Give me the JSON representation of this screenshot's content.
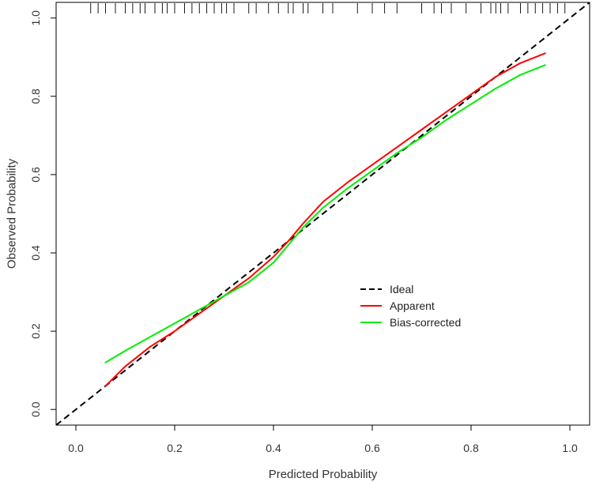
{
  "chart_data": {
    "type": "line",
    "title": "",
    "xlabel": "Predicted Probability",
    "ylabel": "Observed Probability",
    "xlim": [
      -0.04,
      1.04
    ],
    "ylim": [
      -0.04,
      1.04
    ],
    "xticks": [
      0.0,
      0.2,
      0.4,
      0.6,
      0.8,
      1.0
    ],
    "yticks": [
      0.0,
      0.2,
      0.4,
      0.6,
      0.8,
      1.0
    ],
    "xtick_labels": [
      "0.0",
      "0.2",
      "0.4",
      "0.6",
      "0.8",
      "1.0"
    ],
    "ytick_labels": [
      "0.0",
      "0.2",
      "0.4",
      "0.6",
      "0.8",
      "1.0"
    ],
    "grid": false,
    "legend_position": "center-right",
    "series": [
      {
        "name": "Ideal",
        "color": "#000000",
        "style": "dashed",
        "x": [
          -0.04,
          1.04
        ],
        "y": [
          -0.04,
          1.04
        ]
      },
      {
        "name": "Apparent",
        "color": "#ff0000",
        "style": "solid",
        "x": [
          0.06,
          0.1,
          0.15,
          0.2,
          0.25,
          0.3,
          0.35,
          0.4,
          0.43,
          0.46,
          0.5,
          0.55,
          0.6,
          0.65,
          0.7,
          0.75,
          0.8,
          0.85,
          0.9,
          0.95
        ],
        "y": [
          0.06,
          0.11,
          0.16,
          0.2,
          0.245,
          0.29,
          0.335,
          0.39,
          0.43,
          0.475,
          0.53,
          0.58,
          0.625,
          0.67,
          0.715,
          0.76,
          0.805,
          0.85,
          0.885,
          0.91
        ]
      },
      {
        "name": "Bias-corrected",
        "color": "#00ee00",
        "style": "solid",
        "x": [
          0.06,
          0.1,
          0.15,
          0.2,
          0.25,
          0.3,
          0.35,
          0.4,
          0.43,
          0.46,
          0.5,
          0.55,
          0.6,
          0.65,
          0.7,
          0.75,
          0.8,
          0.85,
          0.9,
          0.95
        ],
        "y": [
          0.12,
          0.15,
          0.185,
          0.22,
          0.255,
          0.29,
          0.325,
          0.375,
          0.42,
          0.465,
          0.515,
          0.565,
          0.61,
          0.655,
          0.695,
          0.74,
          0.78,
          0.82,
          0.855,
          0.88
        ]
      }
    ],
    "rug_x": [
      0.03,
      0.045,
      0.06,
      0.08,
      0.1,
      0.115,
      0.13,
      0.14,
      0.16,
      0.175,
      0.185,
      0.2,
      0.22,
      0.235,
      0.25,
      0.265,
      0.28,
      0.295,
      0.305,
      0.32,
      0.35,
      0.365,
      0.39,
      0.41,
      0.43,
      0.44,
      0.46,
      0.47,
      0.5,
      0.52,
      0.57,
      0.6,
      0.625,
      0.65,
      0.7,
      0.725,
      0.74,
      0.76,
      0.79,
      0.82,
      0.84,
      0.85,
      0.86,
      0.875,
      0.9,
      0.915,
      0.93,
      0.945,
      0.96,
      0.975,
      0.99
    ]
  }
}
